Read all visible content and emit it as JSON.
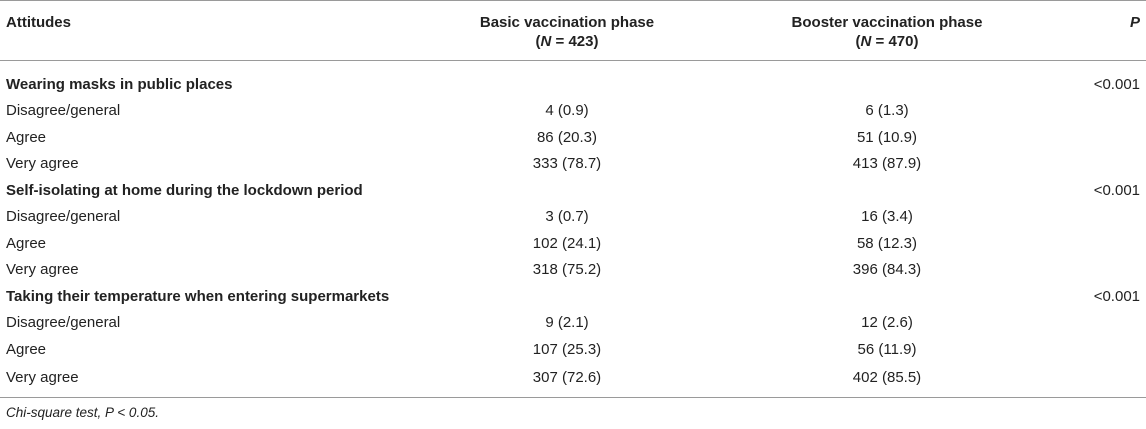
{
  "table": {
    "header": {
      "col1": "Attitudes",
      "col2_title": "Basic vaccination phase",
      "col2_n_label": "N",
      "col2_n_value": " = 423)",
      "col3_title": "Booster vaccination phase",
      "col3_n_label": "N",
      "col3_n_value": " = 470)",
      "col4": "P"
    },
    "sections": [
      {
        "title": "Wearing masks in public places",
        "p": "<0.001",
        "rows": [
          {
            "label": "Disagree/general",
            "basic": "4 (0.9)",
            "booster": "6 (1.3)"
          },
          {
            "label": "Agree",
            "basic": "86 (20.3)",
            "booster": "51 (10.9)"
          },
          {
            "label": "Very agree",
            "basic": "333 (78.7)",
            "booster": "413 (87.9)"
          }
        ]
      },
      {
        "title": "Self-isolating at home during the lockdown period",
        "p": "<0.001",
        "rows": [
          {
            "label": "Disagree/general",
            "basic": "3 (0.7)",
            "booster": "16 (3.4)"
          },
          {
            "label": "Agree",
            "basic": "102 (24.1)",
            "booster": "58 (12.3)"
          },
          {
            "label": "Very agree",
            "basic": "318 (75.2)",
            "booster": "396 (84.3)"
          }
        ]
      },
      {
        "title": "Taking their temperature when entering supermarkets",
        "p": "<0.001",
        "rows": [
          {
            "label": "Disagree/general",
            "basic": "9 (2.1)",
            "booster": "12 (2.6)"
          },
          {
            "label": "Agree",
            "basic": "107 (25.3)",
            "booster": "56 (11.9)"
          },
          {
            "label": "Very agree",
            "basic": "307 (72.6)",
            "booster": "402 (85.5)"
          }
        ]
      }
    ],
    "footnote": "Chi-square test, P < 0.05."
  }
}
